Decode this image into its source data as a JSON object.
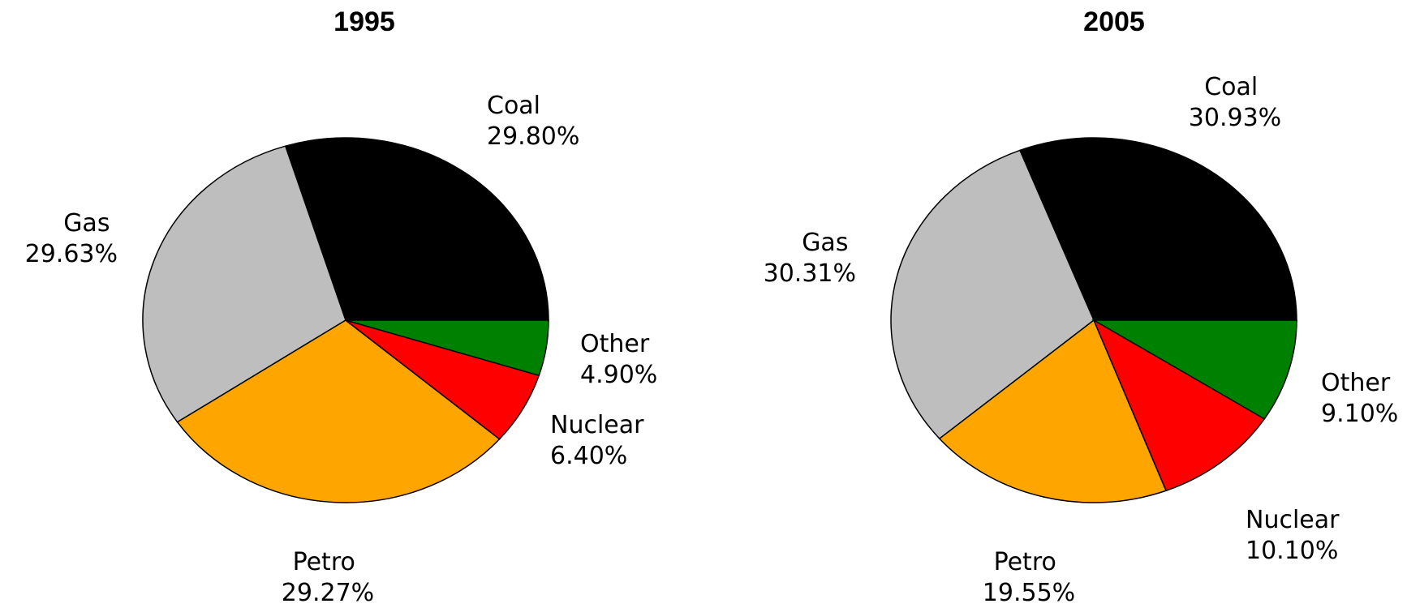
{
  "chart_data": [
    {
      "type": "pie",
      "title": "1995",
      "slices": [
        {
          "label": "Coal",
          "value": 29.8,
          "value_text": "29.80%",
          "color": "#000000"
        },
        {
          "label": "Gas",
          "value": 29.63,
          "value_text": "29.63%",
          "color": "#bebebe"
        },
        {
          "label": "Petro",
          "value": 29.27,
          "value_text": "29.27%",
          "color": "#ffa500"
        },
        {
          "label": "Nuclear",
          "value": 6.4,
          "value_text": "6.40%",
          "color": "#ff0000"
        },
        {
          "label": "Other",
          "value": 4.9,
          "value_text": "4.90%",
          "color": "#008000"
        }
      ]
    },
    {
      "type": "pie",
      "title": "2005",
      "slices": [
        {
          "label": "Coal",
          "value": 30.93,
          "value_text": "30.93%",
          "color": "#000000"
        },
        {
          "label": "Gas",
          "value": 30.31,
          "value_text": "30.31%",
          "color": "#bebebe"
        },
        {
          "label": "Petro",
          "value": 19.55,
          "value_text": "19.55%",
          "color": "#ffa500"
        },
        {
          "label": "Nuclear",
          "value": 10.1,
          "value_text": "10.10%",
          "color": "#ff0000"
        },
        {
          "label": "Other",
          "value": 9.1,
          "value_text": "9.10%",
          "color": "#008000"
        }
      ]
    }
  ]
}
